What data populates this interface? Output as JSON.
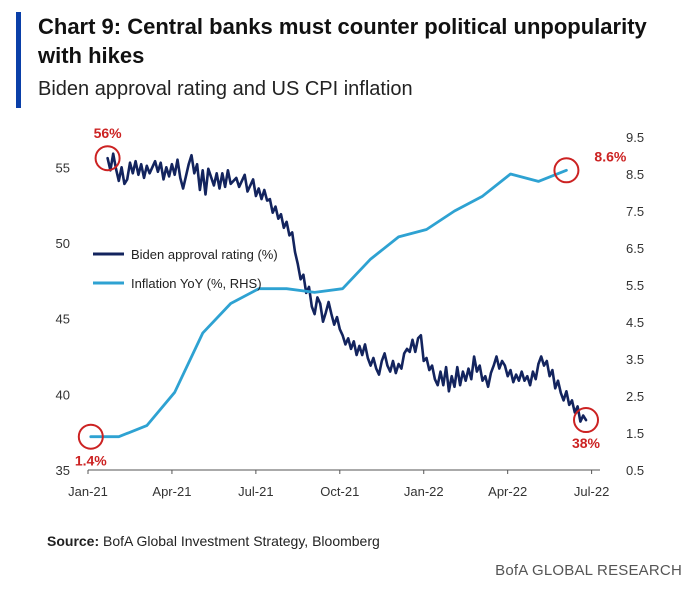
{
  "header": {
    "title": "Chart 9: Central banks must counter political unpopularity with hikes",
    "subtitle": "Biden approval rating and US CPI inflation"
  },
  "footer": {
    "source_label": "Source:",
    "source_text": "BofA Global Investment Strategy, Bloomberg",
    "brand": "BofA GLOBAL RESEARCH"
  },
  "colors": {
    "approval": "#13245e",
    "inflation": "#2ea2d2",
    "marker": "#cc2222",
    "accent": "#0a3fa8"
  },
  "chart_data": {
    "type": "line",
    "title": "Biden approval rating and US CPI inflation",
    "x_tick_labels": [
      "Jan-21",
      "Apr-21",
      "Jul-21",
      "Oct-21",
      "Jan-22",
      "Apr-22",
      "Jul-22"
    ],
    "x_range": [
      0,
      18.3
    ],
    "x_unit": "months since Jan-21",
    "y_left": {
      "label": "Biden approval rating (%)",
      "lim": [
        35,
        57
      ],
      "ticks": [
        35,
        40,
        45,
        50,
        55
      ]
    },
    "y_right": {
      "label": "Inflation YoY (%, RHS)",
      "lim": [
        0.5,
        9.5
      ],
      "ticks": [
        "0.5",
        "1.5",
        "2.5",
        "3.5",
        "4.5",
        "5.5",
        "6.5",
        "7.5",
        "8.5",
        "9.5"
      ]
    },
    "legend": {
      "position": "center-left",
      "entries": [
        "Biden approval rating (%)",
        "Inflation YoY (%, RHS)"
      ]
    },
    "series": [
      {
        "name": "Biden approval rating (%)",
        "axis": "left",
        "points": [
          [
            0.7,
            55.6
          ],
          [
            0.8,
            54.8
          ],
          [
            0.9,
            55.9
          ],
          [
            1.0,
            54.9
          ],
          [
            1.1,
            54.1
          ],
          [
            1.2,
            55.0
          ],
          [
            1.3,
            53.9
          ],
          [
            1.4,
            54.2
          ],
          [
            1.5,
            55.3
          ],
          [
            1.6,
            54.6
          ],
          [
            1.7,
            55.4
          ],
          [
            1.8,
            54.5
          ],
          [
            1.9,
            55.2
          ],
          [
            2.0,
            54.3
          ],
          [
            2.1,
            55.1
          ],
          [
            2.2,
            54.6
          ],
          [
            2.4,
            55.4
          ],
          [
            2.5,
            54.7
          ],
          [
            2.6,
            55.3
          ],
          [
            2.7,
            54.2
          ],
          [
            2.8,
            55.0
          ],
          [
            2.9,
            54.4
          ],
          [
            3.0,
            55.2
          ],
          [
            3.1,
            54.5
          ],
          [
            3.2,
            55.5
          ],
          [
            3.3,
            54.3
          ],
          [
            3.4,
            53.6
          ],
          [
            3.5,
            54.4
          ],
          [
            3.6,
            55.2
          ],
          [
            3.7,
            55.8
          ],
          [
            3.8,
            54.6
          ],
          [
            3.9,
            55.2
          ],
          [
            4.0,
            53.5
          ],
          [
            4.1,
            54.8
          ],
          [
            4.2,
            53.2
          ],
          [
            4.3,
            54.9
          ],
          [
            4.5,
            53.8
          ],
          [
            4.6,
            54.6
          ],
          [
            4.7,
            53.6
          ],
          [
            4.8,
            54.6
          ],
          [
            4.9,
            53.7
          ],
          [
            5.0,
            54.8
          ],
          [
            5.1,
            53.9
          ],
          [
            5.3,
            54.3
          ],
          [
            5.4,
            53.7
          ],
          [
            5.6,
            54.5
          ],
          [
            5.7,
            53.4
          ],
          [
            5.9,
            54.2
          ],
          [
            6.0,
            53.1
          ],
          [
            6.1,
            53.6
          ],
          [
            6.2,
            52.9
          ],
          [
            6.3,
            53.5
          ],
          [
            6.4,
            52.8
          ],
          [
            6.5,
            52.9
          ],
          [
            6.6,
            52.0
          ],
          [
            6.7,
            52.4
          ],
          [
            6.8,
            51.6
          ],
          [
            6.9,
            51.9
          ],
          [
            7.0,
            51.0
          ],
          [
            7.1,
            51.4
          ],
          [
            7.2,
            50.5
          ],
          [
            7.3,
            50.7
          ],
          [
            7.4,
            49.4
          ],
          [
            7.5,
            48.6
          ],
          [
            7.6,
            47.6
          ],
          [
            7.7,
            47.9
          ],
          [
            7.8,
            46.7
          ],
          [
            7.9,
            47.1
          ],
          [
            8.0,
            45.8
          ],
          [
            8.1,
            45.3
          ],
          [
            8.2,
            46.4
          ],
          [
            8.3,
            46.0
          ],
          [
            8.4,
            44.8
          ],
          [
            8.5,
            45.4
          ],
          [
            8.6,
            46.1
          ],
          [
            8.7,
            45.3
          ],
          [
            8.8,
            44.6
          ],
          [
            8.9,
            45.1
          ],
          [
            9.0,
            44.3
          ],
          [
            9.1,
            43.9
          ],
          [
            9.2,
            43.3
          ],
          [
            9.3,
            43.7
          ],
          [
            9.4,
            43.0
          ],
          [
            9.5,
            43.5
          ],
          [
            9.6,
            42.6
          ],
          [
            9.7,
            43.2
          ],
          [
            9.8,
            42.6
          ],
          [
            9.9,
            43.3
          ],
          [
            10.0,
            42.4
          ],
          [
            10.1,
            41.9
          ],
          [
            10.2,
            42.4
          ],
          [
            10.3,
            41.7
          ],
          [
            10.4,
            41.3
          ],
          [
            10.5,
            42.2
          ],
          [
            10.6,
            42.7
          ],
          [
            10.7,
            41.9
          ],
          [
            10.8,
            41.5
          ],
          [
            10.9,
            42.2
          ],
          [
            11.0,
            41.4
          ],
          [
            11.1,
            42.0
          ],
          [
            11.2,
            41.7
          ],
          [
            11.3,
            42.7
          ],
          [
            11.4,
            43.0
          ],
          [
            11.5,
            42.8
          ],
          [
            11.6,
            43.6
          ],
          [
            11.7,
            42.8
          ],
          [
            11.8,
            43.7
          ],
          [
            11.9,
            43.9
          ],
          [
            12.0,
            42.2
          ],
          [
            12.1,
            42.4
          ],
          [
            12.2,
            41.6
          ],
          [
            12.3,
            41.9
          ],
          [
            12.4,
            41.0
          ],
          [
            12.5,
            40.6
          ],
          [
            12.6,
            41.5
          ],
          [
            12.7,
            40.6
          ],
          [
            12.8,
            41.8
          ],
          [
            12.9,
            40.2
          ],
          [
            13.0,
            41.2
          ],
          [
            13.1,
            40.5
          ],
          [
            13.2,
            41.8
          ],
          [
            13.3,
            40.6
          ],
          [
            13.4,
            41.5
          ],
          [
            13.5,
            40.9
          ],
          [
            13.6,
            41.7
          ],
          [
            13.7,
            41.0
          ],
          [
            13.8,
            42.5
          ],
          [
            13.9,
            41.5
          ],
          [
            14.0,
            41.9
          ],
          [
            14.1,
            40.9
          ],
          [
            14.2,
            41.2
          ],
          [
            14.3,
            40.5
          ],
          [
            14.4,
            41.4
          ],
          [
            14.5,
            41.9
          ],
          [
            14.6,
            42.5
          ],
          [
            14.7,
            41.7
          ],
          [
            14.8,
            42.2
          ],
          [
            14.9,
            41.9
          ],
          [
            15.0,
            41.2
          ],
          [
            15.1,
            41.6
          ],
          [
            15.2,
            40.8
          ],
          [
            15.3,
            41.3
          ],
          [
            15.4,
            40.9
          ],
          [
            15.5,
            41.5
          ],
          [
            15.6,
            40.9
          ],
          [
            15.7,
            41.2
          ],
          [
            15.8,
            40.6
          ],
          [
            15.9,
            41.5
          ],
          [
            16.0,
            41.0
          ],
          [
            16.1,
            42.0
          ],
          [
            16.2,
            42.5
          ],
          [
            16.3,
            41.9
          ],
          [
            16.4,
            42.2
          ],
          [
            16.5,
            41.2
          ],
          [
            16.6,
            41.6
          ],
          [
            16.7,
            40.4
          ],
          [
            16.8,
            40.9
          ],
          [
            16.9,
            40.1
          ],
          [
            17.0,
            39.6
          ],
          [
            17.1,
            40.2
          ],
          [
            17.2,
            39.3
          ],
          [
            17.3,
            39.6
          ],
          [
            17.4,
            38.8
          ],
          [
            17.5,
            39.2
          ],
          [
            17.6,
            38.2
          ],
          [
            17.7,
            38.6
          ],
          [
            17.8,
            38.3
          ]
        ]
      },
      {
        "name": "Inflation YoY (%, RHS)",
        "axis": "right",
        "points": [
          [
            0.1,
            1.4
          ],
          [
            1.1,
            1.4
          ],
          [
            2.1,
            1.7
          ],
          [
            3.1,
            2.6
          ],
          [
            4.1,
            4.2
          ],
          [
            5.1,
            5.0
          ],
          [
            6.1,
            5.4
          ],
          [
            7.1,
            5.4
          ],
          [
            8.1,
            5.3
          ],
          [
            9.1,
            5.4
          ],
          [
            10.1,
            6.2
          ],
          [
            11.1,
            6.8
          ],
          [
            12.1,
            7.0
          ],
          [
            13.1,
            7.5
          ],
          [
            14.1,
            7.9
          ],
          [
            15.1,
            8.5
          ],
          [
            16.1,
            8.3
          ],
          [
            17.1,
            8.6
          ]
        ]
      }
    ],
    "annotations": [
      {
        "text": "56%",
        "series": "Biden approval rating (%)",
        "x": 0.7,
        "y": 55.6
      },
      {
        "text": "1.4%",
        "series": "Inflation YoY (%, RHS)",
        "x": 0.1,
        "y": 1.4
      },
      {
        "text": "8.6%",
        "series": "Inflation YoY (%, RHS)",
        "x": 17.1,
        "y": 8.6
      },
      {
        "text": "38%",
        "series": "Biden approval rating (%)",
        "x": 17.8,
        "y": 38.3
      }
    ]
  }
}
